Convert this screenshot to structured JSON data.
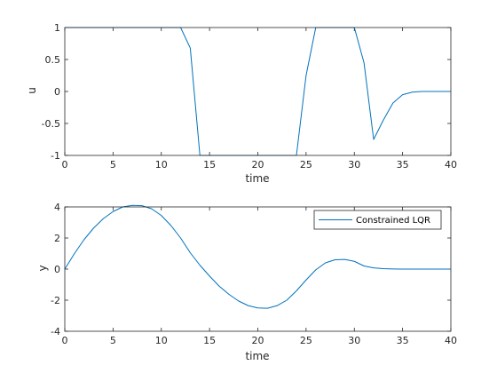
{
  "chart_data": [
    {
      "type": "line",
      "title": "",
      "xlabel": "time",
      "ylabel": "u",
      "xlim": [
        0,
        40
      ],
      "ylim": [
        -1,
        1
      ],
      "xticks": [
        0,
        5,
        10,
        15,
        20,
        25,
        30,
        35,
        40
      ],
      "yticks": [
        -1,
        -0.5,
        0,
        0.5,
        1
      ],
      "grid": false,
      "series": [
        {
          "color": "#0072bd",
          "x": [
            0,
            12,
            13,
            14,
            15,
            16,
            17,
            18,
            19,
            20,
            21,
            22,
            23,
            24,
            25,
            26,
            27,
            28,
            29,
            30,
            31,
            32,
            33,
            34,
            35,
            36,
            37,
            38,
            39,
            40
          ],
          "y": [
            1,
            1,
            0.68,
            -1,
            -1,
            -1,
            -1,
            -1,
            -1,
            -1,
            -1,
            -1,
            -1,
            -1,
            0.25,
            1,
            1,
            1,
            1,
            1,
            0.45,
            -0.75,
            -0.45,
            -0.18,
            -0.05,
            -0.01,
            0,
            0,
            0,
            0
          ]
        }
      ]
    },
    {
      "type": "line",
      "title": "",
      "xlabel": "time",
      "ylabel": "y",
      "xlim": [
        0,
        40
      ],
      "ylim": [
        -4,
        4
      ],
      "xticks": [
        0,
        5,
        10,
        15,
        20,
        25,
        30,
        35,
        40
      ],
      "yticks": [
        -4,
        -2,
        0,
        2,
        4
      ],
      "grid": false,
      "legend": "top-right",
      "series": [
        {
          "name": "Constrained LQR",
          "color": "#0072bd",
          "x": [
            0,
            1,
            2,
            3,
            4,
            5,
            6,
            7,
            8,
            9,
            10,
            11,
            12,
            13,
            14,
            15,
            16,
            17,
            18,
            19,
            20,
            21,
            22,
            23,
            24,
            25,
            26,
            27,
            28,
            29,
            30,
            31,
            32,
            33,
            34,
            35,
            36,
            37,
            38,
            39,
            40
          ],
          "y": [
            0,
            1.0,
            1.9,
            2.65,
            3.25,
            3.7,
            4.0,
            4.1,
            4.08,
            3.88,
            3.45,
            2.8,
            2.0,
            1.05,
            0.25,
            -0.45,
            -1.1,
            -1.62,
            -2.05,
            -2.35,
            -2.5,
            -2.52,
            -2.35,
            -2.0,
            -1.4,
            -0.7,
            -0.05,
            0.4,
            0.6,
            0.62,
            0.5,
            0.2,
            0.08,
            0.03,
            0.01,
            0.0,
            0.0,
            0.0,
            0.0,
            0.0,
            0.0
          ]
        }
      ]
    }
  ]
}
